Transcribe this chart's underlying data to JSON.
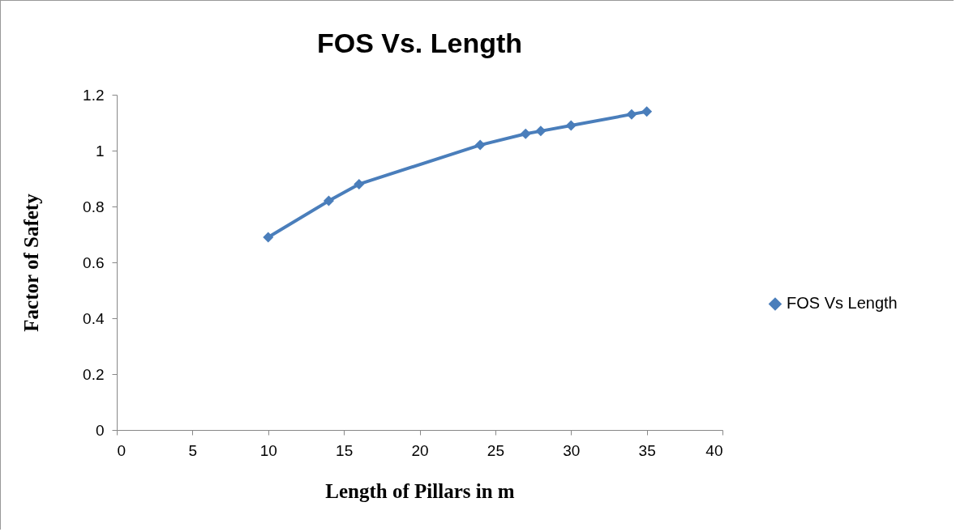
{
  "chart_data": {
    "type": "line",
    "title": "FOS Vs. Length",
    "xlabel": "Length  of Pillars in m",
    "ylabel": "Factor of  Safety",
    "x": [
      10,
      14,
      16,
      24,
      27,
      28,
      30,
      34,
      35
    ],
    "series": [
      {
        "name": "FOS Vs Length",
        "color": "#4a7ebb",
        "values": [
          0.69,
          0.82,
          0.88,
          1.02,
          1.06,
          1.07,
          1.09,
          1.13,
          1.14
        ]
      }
    ],
    "xlim": [
      0,
      40
    ],
    "xticks": [
      0,
      5,
      10,
      15,
      20,
      25,
      30,
      35,
      40
    ],
    "ylim": [
      0,
      1.2
    ],
    "yticks": [
      0,
      0.2,
      0.4,
      0.6,
      0.8,
      1,
      1.2
    ],
    "grid": false,
    "legend": "right",
    "marker": "diamond",
    "line_style": "solid"
  }
}
